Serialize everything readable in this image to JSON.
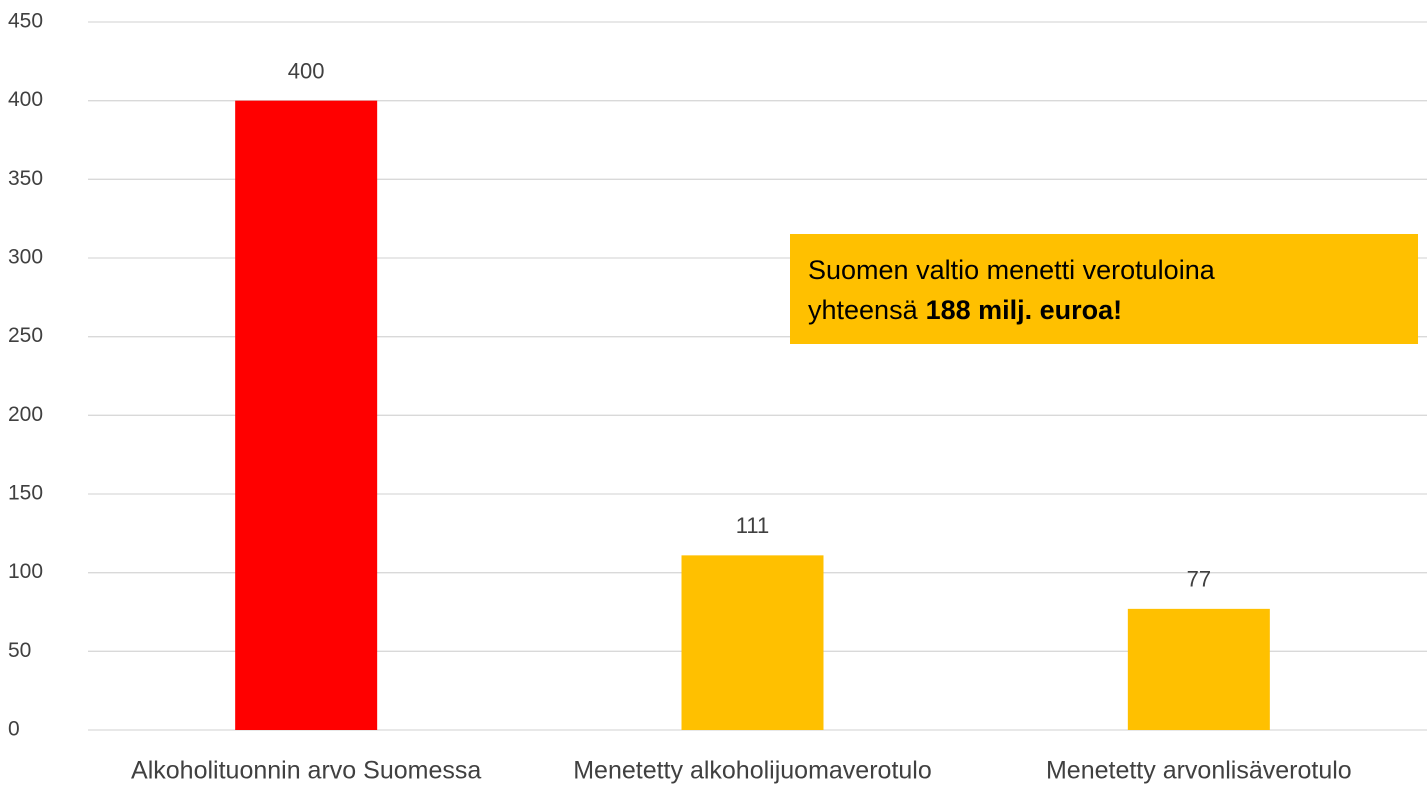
{
  "chart_data": {
    "type": "bar",
    "categories": [
      "Alkoholituonnin arvo Suomessa",
      "Menetetty alkoholijuomaverotulo",
      "Menetetty arvonlisäverotulo"
    ],
    "values": [
      400,
      111,
      77
    ],
    "colors": [
      "#ff0000",
      "#ffc000",
      "#ffc000"
    ],
    "ylim": [
      0,
      450
    ],
    "yticks": [
      0,
      50,
      100,
      150,
      200,
      250,
      300,
      350,
      400,
      450
    ],
    "grid": true,
    "annotation": {
      "line1": "Suomen valtio menetti verotuloina",
      "line2": "yhteensä",
      "line2_bold": "188 milj. euroa!",
      "color": "#ffc000"
    }
  }
}
